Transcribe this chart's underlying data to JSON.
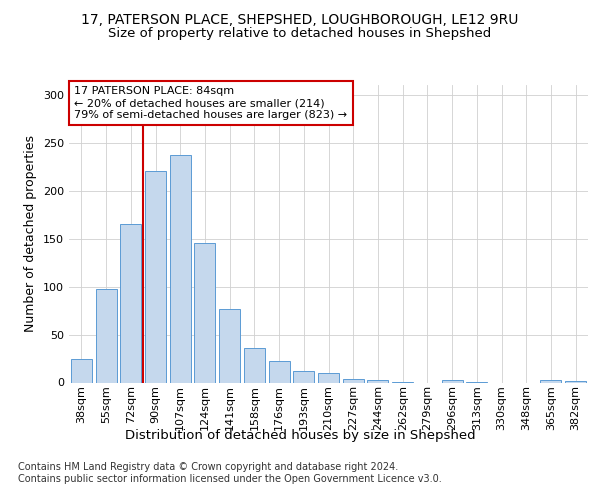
{
  "title": "17, PATERSON PLACE, SHEPSHED, LOUGHBOROUGH, LE12 9RU",
  "subtitle": "Size of property relative to detached houses in Shepshed",
  "xlabel_bottom": "Distribution of detached houses by size in Shepshed",
  "ylabel": "Number of detached properties",
  "categories": [
    "38sqm",
    "55sqm",
    "72sqm",
    "90sqm",
    "107sqm",
    "124sqm",
    "141sqm",
    "158sqm",
    "176sqm",
    "193sqm",
    "210sqm",
    "227sqm",
    "244sqm",
    "262sqm",
    "279sqm",
    "296sqm",
    "313sqm",
    "330sqm",
    "348sqm",
    "365sqm",
    "382sqm"
  ],
  "values": [
    25,
    97,
    165,
    220,
    237,
    145,
    77,
    36,
    22,
    12,
    10,
    4,
    3,
    1,
    0,
    3,
    1,
    0,
    0,
    3,
    2
  ],
  "bar_color": "#c5d8ed",
  "bar_edge_color": "#5b9bd5",
  "vline_x_index": 3,
  "vline_color": "#cc0000",
  "annotation_text": "17 PATERSON PLACE: 84sqm\n← 20% of detached houses are smaller (214)\n79% of semi-detached houses are larger (823) →",
  "annotation_box_color": "#ffffff",
  "annotation_box_edge": "#cc0000",
  "footer_text": "Contains HM Land Registry data © Crown copyright and database right 2024.\nContains public sector information licensed under the Open Government Licence v3.0.",
  "ylim": [
    0,
    310
  ],
  "yticks": [
    0,
    50,
    100,
    150,
    200,
    250,
    300
  ],
  "background_color": "#ffffff",
  "grid_color": "#d0d0d0",
  "title_fontsize": 10,
  "subtitle_fontsize": 9.5,
  "tick_fontsize": 8,
  "ylabel_fontsize": 9,
  "annotation_fontsize": 8,
  "footer_fontsize": 7
}
